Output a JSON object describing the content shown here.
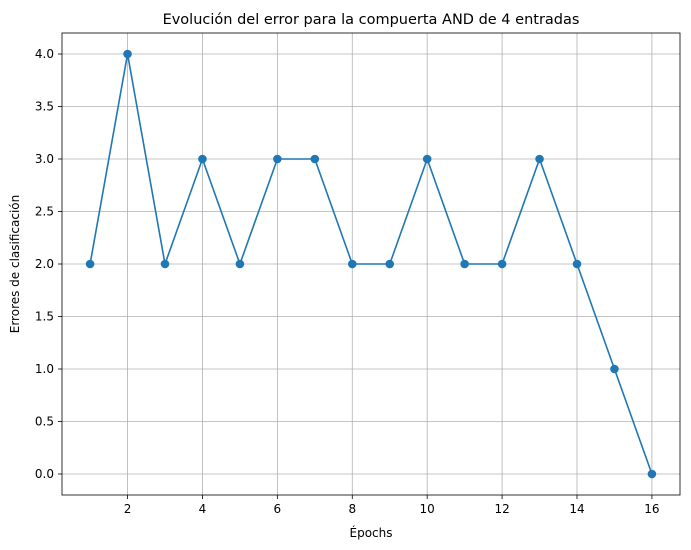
{
  "chart_data": {
    "type": "line",
    "title": "Evolución del error para la compuerta AND de 4 entradas",
    "xlabel": "Épochs",
    "ylabel": "Errores de clasificación",
    "x": [
      1,
      2,
      3,
      4,
      5,
      6,
      7,
      8,
      9,
      10,
      11,
      12,
      13,
      14,
      15,
      16
    ],
    "series": [
      {
        "values": [
          2,
          4,
          2,
          3,
          2,
          3,
          3,
          2,
          2,
          3,
          2,
          2,
          3,
          2,
          1,
          0
        ],
        "color": "#1f77b4",
        "marker": "circle"
      }
    ],
    "xticks": [
      "2",
      "4",
      "6",
      "8",
      "10",
      "12",
      "14",
      "16"
    ],
    "yticks": [
      "0.0",
      "0.5",
      "1.0",
      "1.5",
      "2.0",
      "2.5",
      "3.0",
      "3.5",
      "4.0"
    ],
    "xlim": [
      0.25,
      16.75
    ],
    "ylim": [
      -0.2,
      4.2
    ],
    "grid": true,
    "colors": {
      "grid": "#b0b0b0",
      "axes": "#000000"
    }
  }
}
